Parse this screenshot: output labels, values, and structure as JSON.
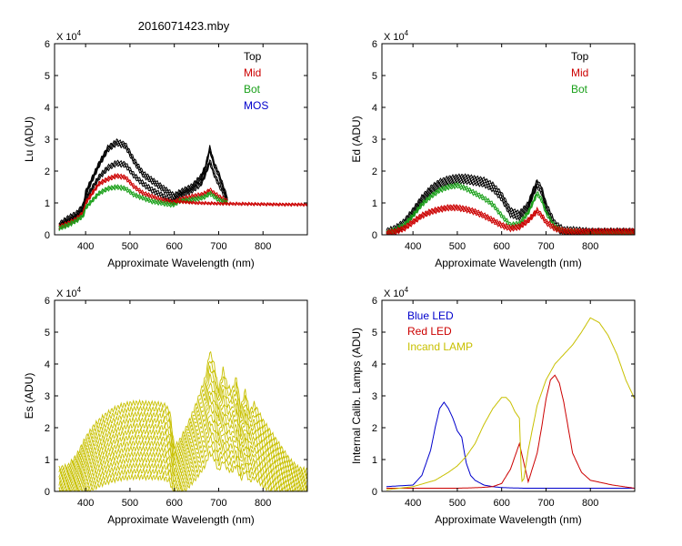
{
  "page_title": "2016071423.mby",
  "colors": {
    "black": "#000000",
    "red": "#cc0000",
    "green": "#1aa01a",
    "blue": "#0000cc",
    "yellow": "#c8c000",
    "blue_led": "#0000cc",
    "red_led": "#cc0000",
    "incand": "#c8c000"
  },
  "chart_data": [
    {
      "id": "lu",
      "type": "line",
      "title": "",
      "ylabel": "Lu (ADU)",
      "xlabel": "Approximate Wavelength (nm)",
      "exponent_label": "X 10",
      "exponent_power": "4",
      "xlim": [
        330,
        900
      ],
      "ylim": [
        0,
        6
      ],
      "xticks": [
        "400",
        "500",
        "600",
        "700",
        "800"
      ],
      "yticks": [
        "0",
        "1",
        "2",
        "3",
        "4",
        "5",
        "6"
      ],
      "legend": [
        {
          "label": "Top",
          "color": "#000000"
        },
        {
          "label": "Mid",
          "color": "#cc0000"
        },
        {
          "label": "Bot",
          "color": "#1aa01a"
        },
        {
          "label": "MOS",
          "color": "#0000cc"
        }
      ],
      "series": [
        {
          "name": "Top",
          "color": "#000000",
          "count": 4,
          "spread": 0.05,
          "x": [
            340,
            360,
            380,
            395,
            400,
            410,
            430,
            450,
            470,
            490,
            510,
            530,
            550,
            570,
            590,
            600,
            610,
            640,
            660,
            670,
            680,
            690,
            700,
            720
          ],
          "y": [
            0.3,
            0.5,
            0.65,
            0.9,
            1.3,
            1.6,
            2.2,
            2.7,
            2.9,
            2.8,
            2.3,
            1.9,
            1.7,
            1.5,
            1.3,
            1.2,
            1.3,
            1.5,
            1.8,
            2.1,
            2.7,
            2.2,
            1.9,
            1.1
          ]
        },
        {
          "name": "Top",
          "color": "#000000",
          "count": 3,
          "spread": 0.06,
          "x": [
            340,
            360,
            380,
            395,
            400,
            410,
            430,
            450,
            470,
            490,
            510,
            530,
            550,
            570,
            590,
            600,
            610,
            640,
            660,
            670,
            680,
            690,
            700,
            720
          ],
          "y": [
            0.25,
            0.4,
            0.55,
            0.75,
            1.1,
            1.35,
            1.8,
            2.1,
            2.25,
            2.2,
            1.85,
            1.6,
            1.4,
            1.25,
            1.1,
            1.05,
            1.2,
            1.4,
            1.6,
            1.9,
            2.3,
            1.9,
            1.6,
            1.05
          ]
        },
        {
          "name": "Mid",
          "color": "#cc0000",
          "count": 3,
          "spread": 0.04,
          "x": [
            340,
            360,
            380,
            395,
            400,
            410,
            430,
            450,
            470,
            490,
            510,
            530,
            550,
            570,
            590,
            600,
            610,
            640,
            660,
            670,
            680,
            690,
            700,
            720
          ],
          "y": [
            0.25,
            0.35,
            0.5,
            0.7,
            1.0,
            1.2,
            1.6,
            1.75,
            1.85,
            1.8,
            1.5,
            1.3,
            1.2,
            1.1,
            1.05,
            1.0,
            1.1,
            1.2,
            1.25,
            1.3,
            1.4,
            1.3,
            1.2,
            1.05
          ]
        },
        {
          "name": "Bot",
          "color": "#1aa01a",
          "count": 3,
          "spread": 0.04,
          "x": [
            340,
            360,
            380,
            395,
            400,
            410,
            430,
            450,
            470,
            490,
            510,
            530,
            550,
            570,
            590,
            600,
            610,
            640,
            660,
            670,
            680,
            690,
            700,
            720
          ],
          "y": [
            0.2,
            0.3,
            0.45,
            0.6,
            0.85,
            1.0,
            1.3,
            1.45,
            1.5,
            1.45,
            1.25,
            1.15,
            1.05,
            1.0,
            0.95,
            0.95,
            1.05,
            1.1,
            1.15,
            1.2,
            1.3,
            1.2,
            1.1,
            1.0
          ]
        },
        {
          "name": "Mid",
          "color": "#cc0000",
          "count": 2,
          "spread": 0.02,
          "x": [
            600,
            650,
            700,
            750,
            800,
            850,
            900
          ],
          "y": [
            1.05,
            1.0,
            0.98,
            0.97,
            0.96,
            0.95,
            0.95
          ]
        }
      ]
    },
    {
      "id": "ed",
      "type": "line",
      "title": "",
      "ylabel": "Ed  (ADU)",
      "xlabel": "Approximate Wavelength (nm)",
      "exponent_label": "X 10",
      "exponent_power": "4",
      "xlim": [
        330,
        900
      ],
      "ylim": [
        0,
        6
      ],
      "xticks": [
        "400",
        "500",
        "600",
        "700",
        "800"
      ],
      "yticks": [
        "0",
        "1",
        "2",
        "3",
        "4",
        "5",
        "6"
      ],
      "legend": [
        {
          "label": "Top",
          "color": "#000000"
        },
        {
          "label": "Mid",
          "color": "#cc0000"
        },
        {
          "label": "Bot",
          "color": "#1aa01a"
        }
      ],
      "series": [
        {
          "name": "Top",
          "color": "#000000",
          "count": 5,
          "spread": 0.06,
          "x": [
            340,
            360,
            380,
            400,
            420,
            440,
            460,
            480,
            500,
            520,
            540,
            560,
            580,
            600,
            620,
            640,
            660,
            670,
            680,
            690,
            700,
            720,
            740,
            760,
            800,
            850,
            900
          ],
          "y": [
            0.05,
            0.15,
            0.35,
            0.7,
            1.1,
            1.4,
            1.6,
            1.7,
            1.75,
            1.75,
            1.7,
            1.65,
            1.5,
            1.2,
            0.7,
            0.6,
            0.9,
            1.3,
            1.6,
            1.4,
            0.9,
            0.3,
            0.1,
            0.1,
            0.05,
            0.05,
            0.05
          ]
        },
        {
          "name": "Bot",
          "color": "#1aa01a",
          "count": 3,
          "spread": 0.05,
          "x": [
            340,
            360,
            380,
            400,
            420,
            440,
            460,
            480,
            500,
            520,
            540,
            560,
            580,
            600,
            620,
            640,
            660,
            670,
            680,
            690,
            700,
            720,
            740,
            760,
            800,
            850,
            900
          ],
          "y": [
            0.05,
            0.15,
            0.3,
            0.6,
            0.95,
            1.2,
            1.4,
            1.5,
            1.55,
            1.45,
            1.3,
            1.15,
            0.95,
            0.6,
            0.3,
            0.35,
            0.7,
            1.0,
            1.3,
            1.1,
            0.7,
            0.25,
            0.1,
            0.1,
            0.05,
            0.05,
            0.05
          ]
        },
        {
          "name": "Mid",
          "color": "#cc0000",
          "count": 4,
          "spread": 0.04,
          "x": [
            340,
            360,
            380,
            400,
            420,
            440,
            460,
            480,
            500,
            520,
            540,
            560,
            580,
            600,
            620,
            640,
            660,
            670,
            680,
            690,
            700,
            720,
            740,
            760,
            800,
            850,
            900
          ],
          "y": [
            0.05,
            0.1,
            0.2,
            0.4,
            0.6,
            0.72,
            0.8,
            0.85,
            0.85,
            0.8,
            0.72,
            0.6,
            0.45,
            0.3,
            0.2,
            0.25,
            0.45,
            0.6,
            0.75,
            0.6,
            0.4,
            0.2,
            0.12,
            0.1,
            0.1,
            0.1,
            0.1
          ]
        }
      ]
    },
    {
      "id": "es",
      "type": "line",
      "title": "",
      "ylabel": "Es  (ADU)",
      "xlabel": "Approximate Wavelength (nm)",
      "exponent_label": "X 10",
      "exponent_power": "4",
      "xlim": [
        330,
        900
      ],
      "ylim": [
        0,
        6
      ],
      "xticks": [
        "400",
        "500",
        "600",
        "700",
        "800"
      ],
      "yticks": [
        "0",
        "1",
        "2",
        "3",
        "4",
        "5",
        "6"
      ],
      "legend": [],
      "series": [
        {
          "name": "Es",
          "color": "#c8c000",
          "count": 14,
          "spread": 0.09,
          "scale_spread": 0.055,
          "x": [
            340,
            360,
            380,
            400,
            420,
            440,
            460,
            480,
            500,
            520,
            540,
            560,
            580,
            590,
            600,
            610,
            630,
            650,
            670,
            680,
            690,
            700,
            710,
            720,
            730,
            740,
            750,
            760,
            770,
            780,
            800,
            820,
            840,
            860,
            880,
            900
          ],
          "y": [
            0.1,
            0.15,
            0.4,
            0.8,
            1.1,
            1.3,
            1.45,
            1.55,
            1.6,
            1.62,
            1.6,
            1.6,
            1.55,
            1.4,
            0.6,
            0.7,
            1.1,
            1.6,
            2.2,
            2.8,
            2.5,
            1.9,
            2.4,
            2.0,
            1.9,
            2.2,
            1.5,
            1.9,
            1.4,
            1.6,
            1.2,
            0.9,
            0.6,
            0.3,
            0.1,
            0.05
          ]
        }
      ]
    },
    {
      "id": "lamps",
      "type": "line",
      "title": "",
      "ylabel": "Internal Calib. Lamps (ADU)",
      "xlabel": "Approximate Wavelength (nm)",
      "exponent_label": "X 10",
      "exponent_power": "4",
      "xlim": [
        330,
        900
      ],
      "ylim": [
        0,
        6
      ],
      "xticks": [
        "400",
        "500",
        "600",
        "700",
        "800"
      ],
      "yticks": [
        "0",
        "1",
        "2",
        "3",
        "4",
        "5",
        "6"
      ],
      "legend": [
        {
          "label": "Blue LED",
          "color": "#0000cc"
        },
        {
          "label": "Red LED",
          "color": "#cc0000"
        },
        {
          "label": "Incand LAMP",
          "color": "#c8c000"
        }
      ],
      "series": [
        {
          "name": "Blue LED",
          "color": "#0000cc",
          "count": 1,
          "spread": 0,
          "x": [
            340,
            400,
            420,
            440,
            450,
            460,
            470,
            480,
            490,
            500,
            510,
            520,
            530,
            540,
            560,
            580,
            600,
            650,
            700,
            800,
            900
          ],
          "y": [
            0.15,
            0.2,
            0.5,
            1.3,
            2.0,
            2.6,
            2.8,
            2.6,
            2.3,
            1.9,
            1.7,
            0.9,
            0.5,
            0.35,
            0.2,
            0.15,
            0.12,
            0.1,
            0.1,
            0.1,
            0.1
          ]
        },
        {
          "name": "Red LED",
          "color": "#cc0000",
          "count": 1,
          "spread": 0,
          "x": [
            340,
            500,
            550,
            580,
            600,
            620,
            640,
            660,
            680,
            690,
            700,
            710,
            720,
            730,
            740,
            750,
            760,
            780,
            800,
            850,
            900
          ],
          "y": [
            0.1,
            0.1,
            0.12,
            0.15,
            0.25,
            0.7,
            1.5,
            0.3,
            1.2,
            2.0,
            2.9,
            3.5,
            3.65,
            3.4,
            2.8,
            2.0,
            1.2,
            0.6,
            0.35,
            0.2,
            0.1
          ]
        },
        {
          "name": "Incand LAMP",
          "color": "#c8c000",
          "count": 1,
          "spread": 0,
          "x": [
            340,
            400,
            450,
            480,
            500,
            520,
            540,
            560,
            580,
            600,
            610,
            620,
            630,
            640,
            645,
            650,
            660,
            680,
            700,
            720,
            740,
            760,
            780,
            800,
            820,
            840,
            860,
            880,
            900
          ],
          "y": [
            0.05,
            0.15,
            0.35,
            0.6,
            0.8,
            1.1,
            1.5,
            2.1,
            2.6,
            2.95,
            2.95,
            2.8,
            2.5,
            2.3,
            0.3,
            0.4,
            1.3,
            2.7,
            3.5,
            4.0,
            4.3,
            4.6,
            5.0,
            5.45,
            5.3,
            4.9,
            4.3,
            3.5,
            2.9
          ]
        }
      ]
    }
  ]
}
